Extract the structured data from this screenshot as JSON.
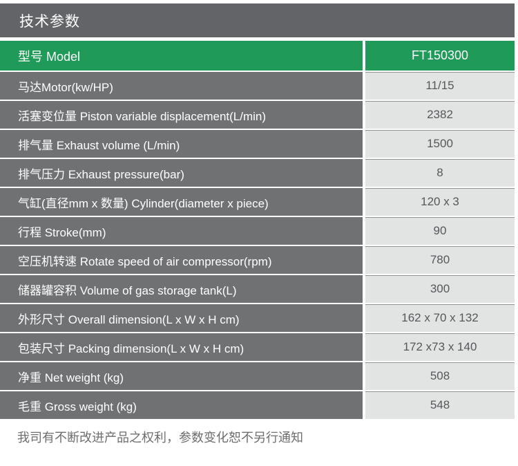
{
  "header": {
    "title": "技术参数"
  },
  "table": {
    "header": {
      "label": "型号 Model",
      "value": "FT150300"
    },
    "rows": [
      {
        "label": "马达Motor(kw/HP)",
        "value": "11/15"
      },
      {
        "label": "活塞变位量 Piston variable displacement(L/min)",
        "value": "2382"
      },
      {
        "label": "排气量 Exhaust volume (L/min)",
        "value": "1500"
      },
      {
        "label": "排气压力 Exhaust pressure(bar)",
        "value": "8"
      },
      {
        "label": "气缸(直径mm x 数量) Cylinder(diameter x piece)",
        "value": "120 x 3"
      },
      {
        "label": "行程 Stroke(mm)",
        "value": "90"
      },
      {
        "label": "空压机转速 Rotate speed of air compressor(rpm)",
        "value": "780"
      },
      {
        "label": "储器罐容积 Volume of gas storage tank(L)",
        "value": "300"
      },
      {
        "label": "外形尺寸 Overall dimension(L x W x H cm)",
        "value": "162 x 70 x 132"
      },
      {
        "label": "包装尺寸 Packing dimension(L x W x H cm)",
        "value": "172 x73 x 140"
      },
      {
        "label": "净重 Net weight (kg)",
        "value": "508"
      },
      {
        "label": "毛重 Gross weight (kg)",
        "value": "548"
      }
    ]
  },
  "footer": {
    "note": "我司有不断改进产品之权利，参数变化恕不另行通知"
  },
  "colors": {
    "title_bar_bg": "#626468",
    "brand_green": "#1f9a58",
    "label_cell_bg": "#6f7173",
    "value_cell_bg": "#e2e3e3",
    "value_text": "#56575a",
    "note_text": "#6d6e70"
  }
}
